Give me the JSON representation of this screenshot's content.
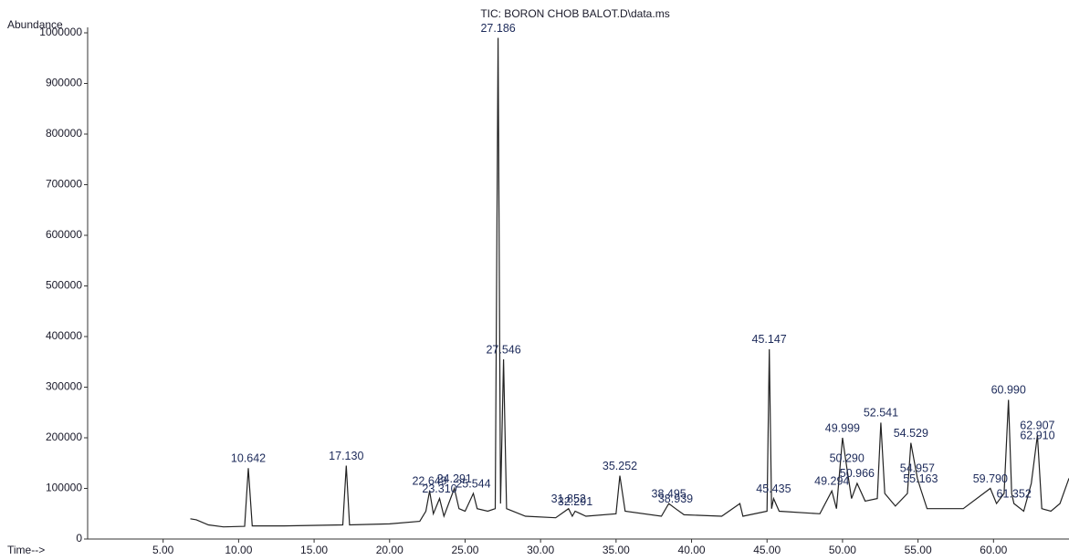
{
  "chart_data": {
    "type": "line",
    "title": "TIC: BORON CHOB BALOT.D\\data.ms",
    "y_label": "Abundance",
    "x_label": "Time-->",
    "xlim": [
      0,
      65
    ],
    "ylim": [
      0,
      1000000
    ],
    "xticks": [
      {
        "value": 5,
        "label": "5.00"
      },
      {
        "value": 10,
        "label": "10.00"
      },
      {
        "value": 15,
        "label": "15.00"
      },
      {
        "value": 20,
        "label": "20.00"
      },
      {
        "value": 25,
        "label": "25.00"
      },
      {
        "value": 30,
        "label": "30.00"
      },
      {
        "value": 35,
        "label": "35.00"
      },
      {
        "value": 40,
        "label": "40.00"
      },
      {
        "value": 45,
        "label": "45.00"
      },
      {
        "value": 50,
        "label": "50.00"
      },
      {
        "value": 55,
        "label": "55.00"
      },
      {
        "value": 60,
        "label": "60.00"
      }
    ],
    "yticks": [
      0,
      100000,
      200000,
      300000,
      400000,
      500000,
      600000,
      700000,
      800000,
      900000,
      1000000
    ],
    "series": [
      {
        "name": "TIC",
        "color": "#222222",
        "x": [
          6.8,
          7.2,
          8.0,
          9.0,
          10.4,
          10.642,
          10.9,
          13.0,
          16.9,
          17.13,
          17.35,
          20.0,
          22.0,
          22.4,
          22.649,
          22.9,
          23.31,
          23.6,
          24.291,
          24.6,
          25.0,
          25.544,
          25.8,
          26.5,
          27.0,
          27.186,
          27.35,
          27.546,
          27.75,
          29.0,
          31.0,
          31.852,
          32.1,
          32.291,
          33.0,
          35.0,
          35.252,
          35.6,
          38.0,
          38.495,
          38.939,
          39.5,
          42.0,
          43.2,
          43.4,
          45.0,
          45.147,
          45.3,
          45.435,
          45.8,
          48.5,
          49.294,
          49.6,
          49.999,
          50.29,
          50.6,
          50.966,
          51.5,
          52.3,
          52.541,
          52.8,
          53.5,
          54.3,
          54.529,
          54.957,
          55.163,
          55.6,
          58.0,
          59.79,
          60.2,
          60.7,
          60.99,
          61.2,
          61.352,
          62.0,
          62.5,
          62.907,
          63.2,
          63.8,
          64.4,
          65.0
        ],
        "values": [
          40000,
          38000,
          28000,
          24000,
          25000,
          140000,
          26000,
          26000,
          28000,
          145000,
          28000,
          30000,
          35000,
          55000,
          95000,
          50000,
          80000,
          45000,
          100000,
          60000,
          55000,
          90000,
          60000,
          55000,
          60000,
          990000,
          70000,
          355000,
          60000,
          45000,
          42000,
          60000,
          45000,
          55000,
          45000,
          50000,
          125000,
          55000,
          45000,
          70000,
          60000,
          48000,
          45000,
          70000,
          45000,
          55000,
          375000,
          60000,
          80000,
          55000,
          50000,
          95000,
          60000,
          200000,
          140000,
          80000,
          110000,
          75000,
          80000,
          230000,
          90000,
          65000,
          90000,
          190000,
          120000,
          100000,
          60000,
          60000,
          100000,
          70000,
          90000,
          275000,
          90000,
          70000,
          55000,
          110000,
          205000,
          60000,
          55000,
          70000,
          120000
        ]
      }
    ],
    "peak_labels": {
      "text": [
        "10.642",
        "17.130",
        "22.649",
        "23.310",
        "24.291",
        "25.544",
        "27.186",
        "27.546",
        "31.852",
        "32.291",
        "35.252",
        "38.495",
        "38.939",
        "45.147",
        "45.435",
        "49.294",
        "49.999",
        "50.290",
        "50.966",
        "52.541",
        "54.529",
        "54.957",
        "55.163",
        "59.790",
        "60.990",
        "61.352",
        "62.907",
        "62.910"
      ],
      "x": [
        10.642,
        17.13,
        22.649,
        23.31,
        24.291,
        25.544,
        27.186,
        27.546,
        31.852,
        32.291,
        35.252,
        38.495,
        38.939,
        45.147,
        45.435,
        49.294,
        49.999,
        50.29,
        50.966,
        52.541,
        54.529,
        54.957,
        55.163,
        59.79,
        60.99,
        61.352,
        62.907,
        62.91
      ],
      "y": [
        140000,
        145000,
        95000,
        80000,
        100000,
        90000,
        990000,
        355000,
        60000,
        55000,
        125000,
        70000,
        60000,
        375000,
        80000,
        95000,
        200000,
        140000,
        110000,
        230000,
        190000,
        120000,
        100000,
        100000,
        275000,
        70000,
        205000,
        185000
      ]
    }
  }
}
